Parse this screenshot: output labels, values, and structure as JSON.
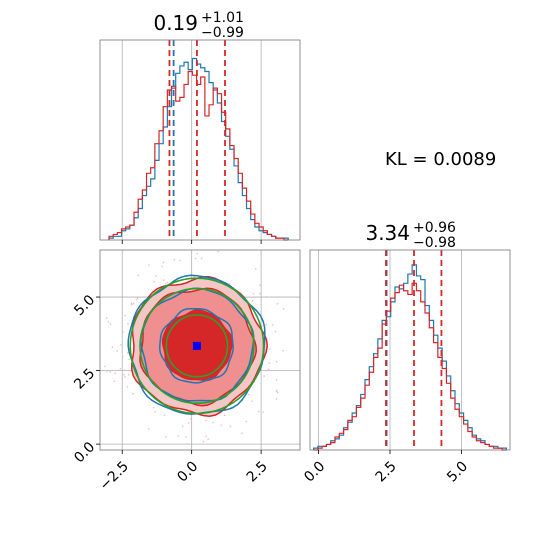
{
  "kl_text": "KL = 0.0089",
  "colors": {
    "series_a": "#1f77b4",
    "series_b": "#d62728",
    "contour_ref": "#2ca02c",
    "marker": "#0000ff",
    "grid": "#b0b0b0"
  },
  "chart_data": [
    {
      "type": "histogram",
      "panel": "marginal-1",
      "title_value": "0.19",
      "title_plus": "+1.01",
      "title_minus": "−0.99",
      "xlim": [
        -3.3,
        3.9
      ],
      "xticks": [
        -2.5,
        0.0,
        2.5
      ],
      "grid": true,
      "series": [
        {
          "color": "#1f77b4",
          "quantile_lines": [
            -0.65
          ],
          "x": [
            -2.9,
            -2.75,
            -2.6,
            -2.45,
            -2.3,
            -2.15,
            -2.0,
            -1.85,
            -1.7,
            -1.55,
            -1.4,
            -1.25,
            -1.1,
            -0.95,
            -0.8,
            -0.65,
            -0.5,
            -0.35,
            -0.2,
            -0.05,
            0.1,
            0.25,
            0.4,
            0.55,
            0.7,
            0.85,
            1.0,
            1.15,
            1.3,
            1.45,
            1.6,
            1.75,
            1.9,
            2.05,
            2.2,
            2.35,
            2.5,
            2.65,
            2.8,
            2.95,
            3.1,
            3.25,
            3.4
          ],
          "values": [
            0.01,
            0.02,
            0.02,
            0.05,
            0.06,
            0.08,
            0.12,
            0.17,
            0.24,
            0.29,
            0.33,
            0.43,
            0.52,
            0.61,
            0.72,
            0.82,
            0.9,
            0.94,
            0.96,
            0.92,
            0.98,
            0.95,
            0.93,
            0.91,
            0.85,
            0.81,
            0.74,
            0.64,
            0.56,
            0.49,
            0.4,
            0.31,
            0.24,
            0.17,
            0.11,
            0.07,
            0.05,
            0.04,
            0.03,
            0.02,
            0.01,
            0.01,
            0.01
          ]
        },
        {
          "color": "#d62728",
          "quantile_lines": [
            -0.8,
            0.19,
            1.2
          ],
          "x": [
            -2.9,
            -2.75,
            -2.6,
            -2.45,
            -2.3,
            -2.15,
            -2.0,
            -1.85,
            -1.7,
            -1.55,
            -1.4,
            -1.25,
            -1.1,
            -0.95,
            -0.8,
            -0.65,
            -0.5,
            -0.35,
            -0.2,
            -0.05,
            0.1,
            0.25,
            0.4,
            0.55,
            0.7,
            0.85,
            1.0,
            1.15,
            1.3,
            1.45,
            1.6,
            1.75,
            1.9,
            2.05,
            2.2,
            2.35,
            2.5,
            2.65,
            2.8,
            2.95,
            3.1,
            3.25,
            3.4
          ],
          "values": [
            0.02,
            0.03,
            0.04,
            0.06,
            0.07,
            0.08,
            0.15,
            0.22,
            0.27,
            0.36,
            0.39,
            0.52,
            0.59,
            0.72,
            0.81,
            0.83,
            0.75,
            0.77,
            0.84,
            0.91,
            0.89,
            0.84,
            0.88,
            0.67,
            0.73,
            0.82,
            0.79,
            0.69,
            0.6,
            0.51,
            0.44,
            0.36,
            0.28,
            0.21,
            0.14,
            0.09,
            0.07,
            0.05,
            0.03,
            0.02,
            0.01,
            0.01,
            0.0
          ]
        }
      ]
    },
    {
      "type": "contour",
      "panel": "joint",
      "xlim": [
        -3.3,
        3.9
      ],
      "ylim": [
        -0.2,
        6.6
      ],
      "xticks": [
        -2.5,
        0.0,
        2.5
      ],
      "yticks": [
        0.0,
        2.5,
        5.0
      ],
      "grid": true,
      "center": [
        0.19,
        3.34
      ],
      "marker": [
        0.19,
        3.34
      ],
      "contour_levels": [
        {
          "rx": 1.1,
          "ry": 1.05
        },
        {
          "rx": 2.05,
          "ry": 1.95
        },
        {
          "rx": 2.4,
          "ry": 2.3
        }
      ]
    },
    {
      "type": "histogram",
      "panel": "marginal-2",
      "title_value": "3.34",
      "title_plus": "+0.96",
      "title_minus": "−0.98",
      "xlim": [
        -0.3,
        6.7
      ],
      "xticks": [
        0.0,
        2.5,
        5.0
      ],
      "grid": true,
      "series": [
        {
          "color": "#1f77b4",
          "quantile_lines": [
            2.38
          ],
          "x": [
            -0.1,
            0.05,
            0.2,
            0.35,
            0.5,
            0.65,
            0.8,
            0.95,
            1.1,
            1.25,
            1.4,
            1.55,
            1.7,
            1.85,
            2.0,
            2.15,
            2.3,
            2.45,
            2.6,
            2.75,
            2.9,
            3.05,
            3.2,
            3.35,
            3.5,
            3.65,
            3.8,
            3.95,
            4.1,
            4.25,
            4.4,
            4.55,
            4.7,
            4.85,
            5.0,
            5.15,
            5.3,
            5.45,
            5.6,
            5.75,
            5.9,
            6.05,
            6.2,
            6.35,
            6.5
          ],
          "values": [
            0.01,
            0.02,
            0.02,
            0.03,
            0.05,
            0.06,
            0.08,
            0.12,
            0.15,
            0.2,
            0.24,
            0.3,
            0.38,
            0.45,
            0.52,
            0.6,
            0.7,
            0.72,
            0.8,
            0.88,
            0.87,
            0.9,
            0.95,
            1.0,
            0.94,
            0.92,
            0.78,
            0.7,
            0.62,
            0.55,
            0.48,
            0.4,
            0.32,
            0.25,
            0.2,
            0.16,
            0.12,
            0.08,
            0.06,
            0.05,
            0.03,
            0.02,
            0.02,
            0.01,
            0.01
          ]
        },
        {
          "color": "#d62728",
          "quantile_lines": [
            2.36,
            3.34,
            4.3
          ],
          "x": [
            -0.1,
            0.05,
            0.2,
            0.35,
            0.5,
            0.65,
            0.8,
            0.95,
            1.1,
            1.25,
            1.4,
            1.55,
            1.7,
            1.85,
            2.0,
            2.15,
            2.3,
            2.45,
            2.6,
            2.75,
            2.9,
            3.05,
            3.2,
            3.35,
            3.5,
            3.65,
            3.8,
            3.95,
            4.1,
            4.25,
            4.4,
            4.55,
            4.7,
            4.85,
            5.0,
            5.15,
            5.3,
            5.45,
            5.6,
            5.75,
            5.9,
            6.05,
            6.2,
            6.35,
            6.5
          ],
          "values": [
            0.0,
            0.01,
            0.02,
            0.03,
            0.04,
            0.07,
            0.09,
            0.11,
            0.16,
            0.18,
            0.23,
            0.28,
            0.35,
            0.42,
            0.5,
            0.55,
            0.68,
            0.75,
            0.82,
            0.85,
            0.89,
            0.86,
            0.84,
            0.9,
            0.86,
            0.8,
            0.74,
            0.66,
            0.58,
            0.5,
            0.44,
            0.36,
            0.28,
            0.22,
            0.18,
            0.14,
            0.1,
            0.07,
            0.05,
            0.04,
            0.03,
            0.02,
            0.01,
            0.01,
            0.0
          ]
        }
      ]
    }
  ]
}
